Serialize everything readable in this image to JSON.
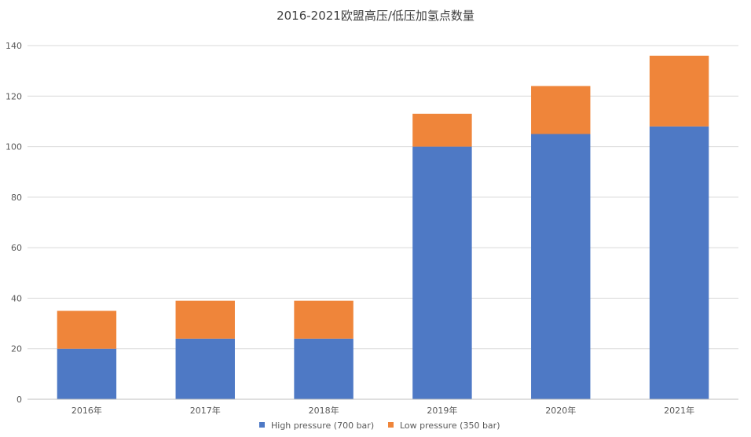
{
  "chart_data": {
    "type": "bar",
    "stacked": true,
    "title": "2016-2021欧盟高压/低压加氢点数量",
    "xlabel": "",
    "ylabel": "",
    "categories": [
      "2016年",
      "2017年",
      "2018年",
      "2019年",
      "2020年",
      "2021年"
    ],
    "series": [
      {
        "name": "High pressure (700 bar)",
        "color": "#4e79c5",
        "values": [
          20,
          24,
          24,
          100,
          105,
          108
        ]
      },
      {
        "name": "Low pressure (350 bar)",
        "color": "#ef853a",
        "values": [
          15,
          15,
          15,
          13,
          19,
          28
        ]
      }
    ],
    "ylim": [
      0,
      140
    ],
    "yticks": [
      0,
      20,
      40,
      60,
      80,
      100,
      120,
      140
    ],
    "grid": true,
    "legend_position": "bottom-center"
  }
}
